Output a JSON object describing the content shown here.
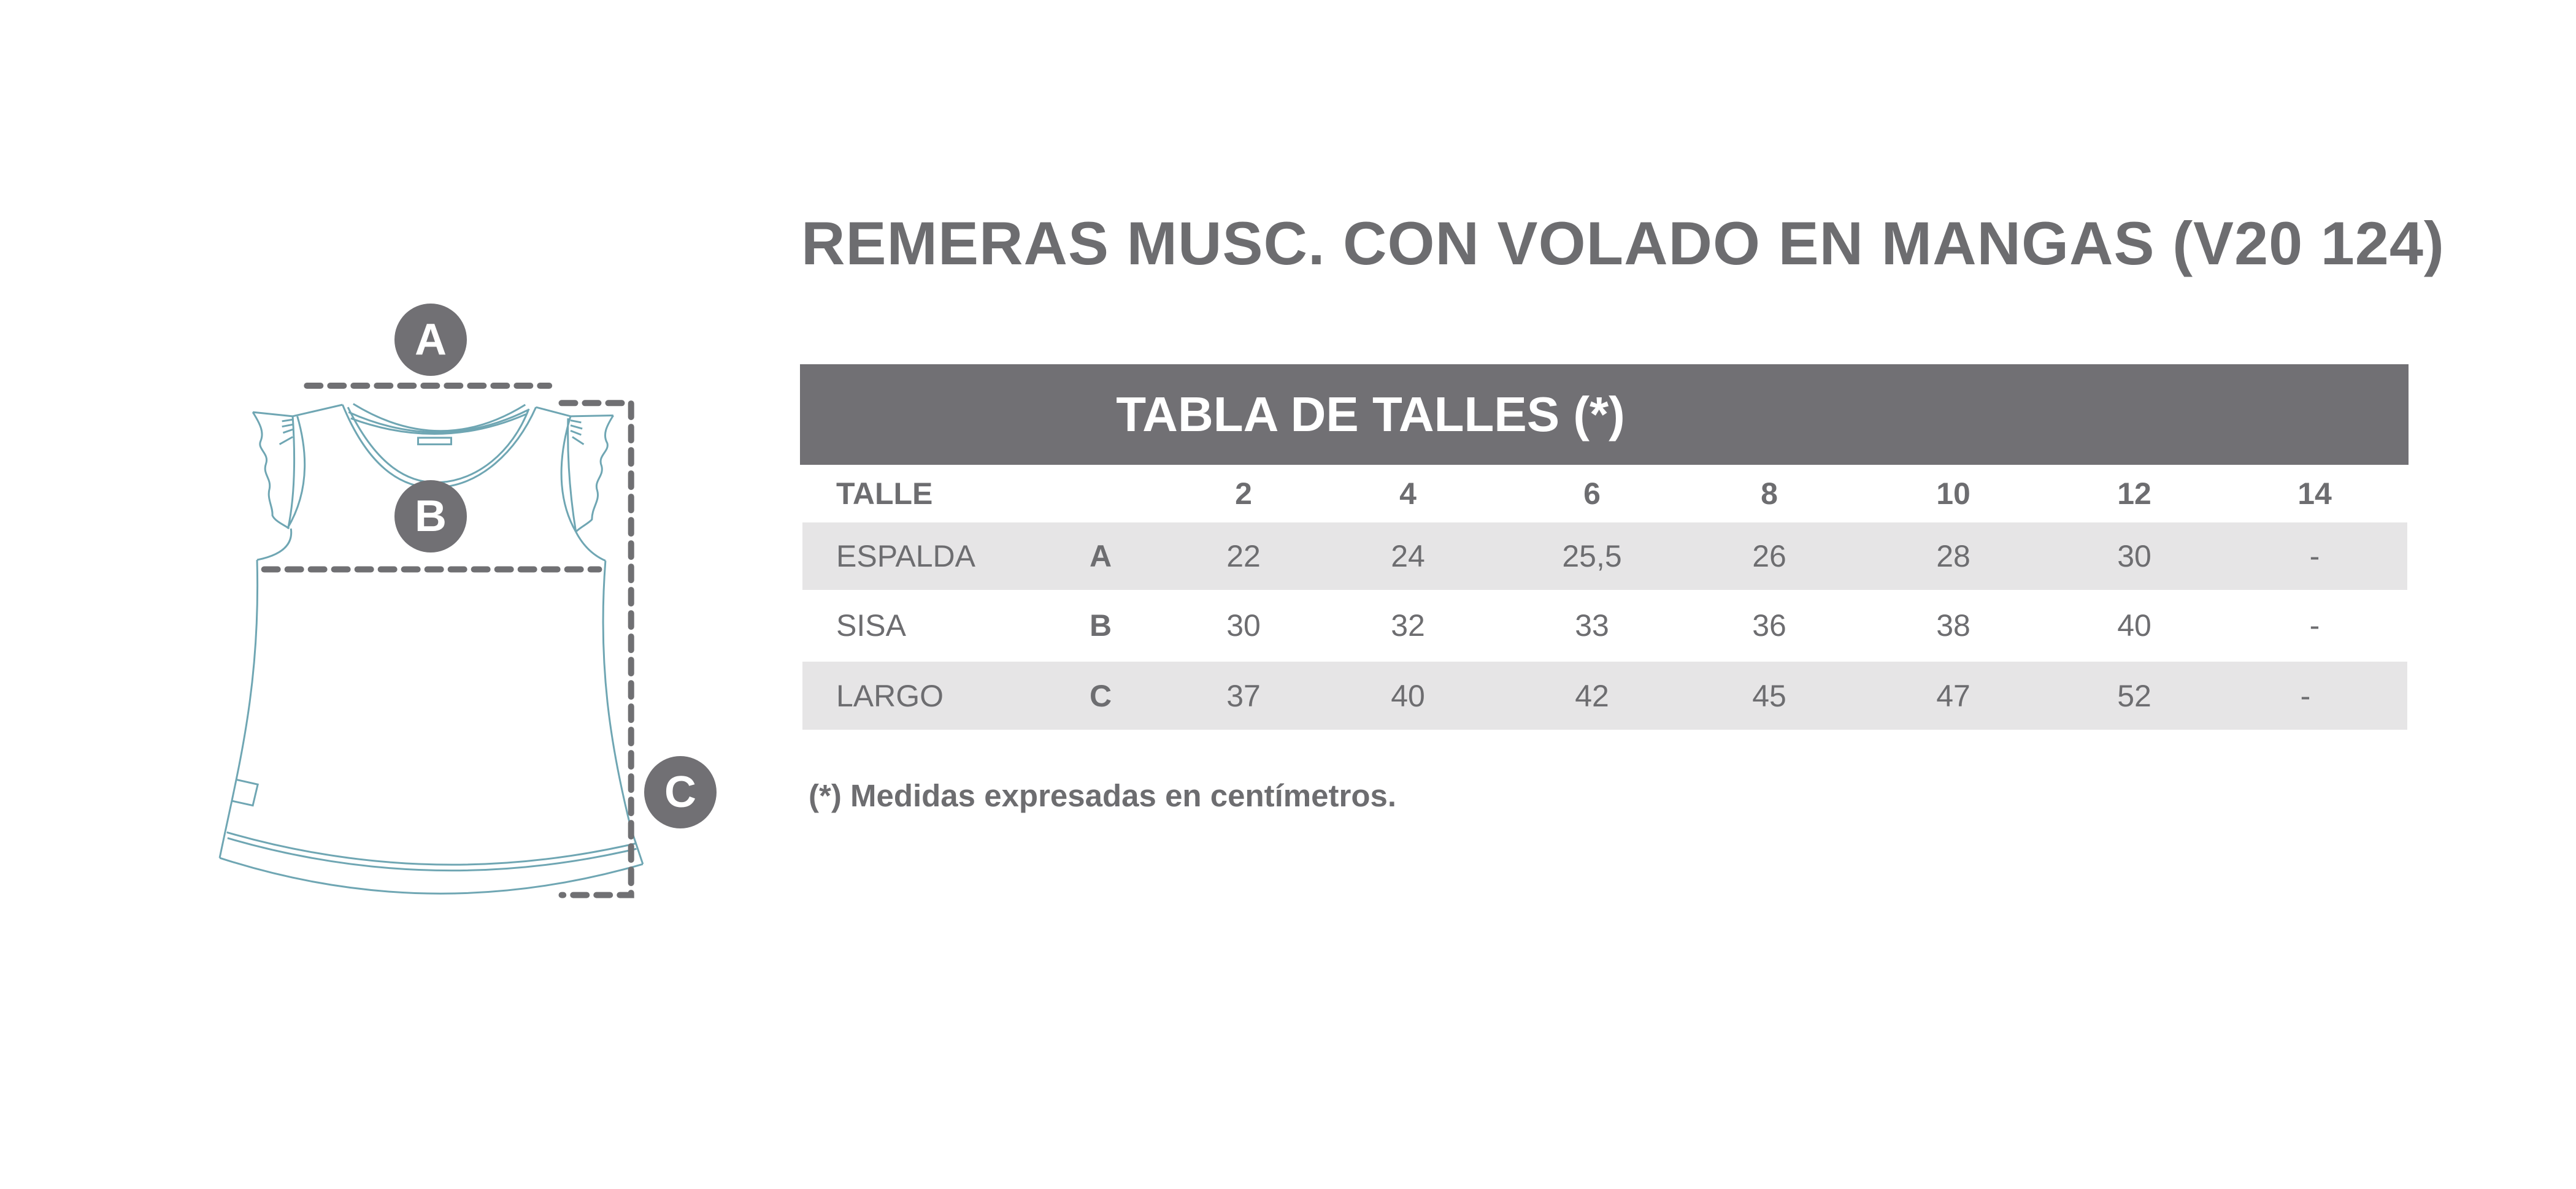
{
  "title": "REMERAS MUSC. CON VOLADO EN MANGAS (V20 124)",
  "diagram": {
    "markers": [
      "A",
      "B",
      "C"
    ],
    "outline_color": "#6fa6b3",
    "dash_color": "#707073"
  },
  "table": {
    "header": "TABLA DE TALLES (*)",
    "size_label": "TALLE",
    "sizes": [
      "2",
      "4",
      "6",
      "8",
      "10",
      "12",
      "14"
    ],
    "rows": [
      {
        "name": "ESPALDA",
        "code": "A",
        "values": [
          "22",
          "24",
          "25,5",
          "26",
          "28",
          "30",
          "-"
        ]
      },
      {
        "name": "SISA",
        "code": "B",
        "values": [
          "30",
          "32",
          "33",
          "36",
          "38",
          "40",
          "-"
        ]
      },
      {
        "name": "LARGO",
        "code": "C",
        "values": [
          "37",
          "40",
          "42",
          "45",
          "47",
          "52",
          "-"
        ]
      }
    ],
    "header_color": "#717074",
    "stripe_color": "#e6e5e6"
  },
  "footnote": "(*) Medidas expresadas en centímetros."
}
